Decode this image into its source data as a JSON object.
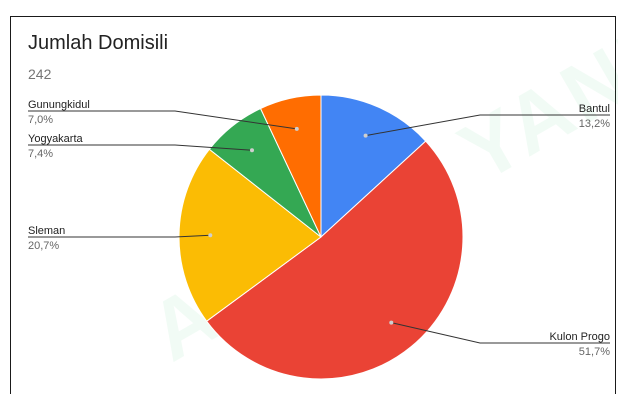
{
  "chart_data": {
    "type": "pie",
    "title": "Jumlah Domisili",
    "subtitle": "242",
    "slices": [
      {
        "label": "Bantul",
        "pct_label": "13,2%",
        "value": 13.2,
        "color": "#4285F4"
      },
      {
        "label": "Kulon Progo",
        "pct_label": "51,7%",
        "value": 51.7,
        "color": "#EA4335"
      },
      {
        "label": "Sleman",
        "pct_label": "20,7%",
        "value": 20.7,
        "color": "#FBBC04"
      },
      {
        "label": "Yogyakarta",
        "pct_label": "7,4%",
        "value": 7.4,
        "color": "#34A853"
      },
      {
        "label": "Gunungkidul",
        "pct_label": "7,0%",
        "value": 7.0,
        "color": "#FF6D01"
      }
    ]
  },
  "watermark": "AHMAD YANI"
}
